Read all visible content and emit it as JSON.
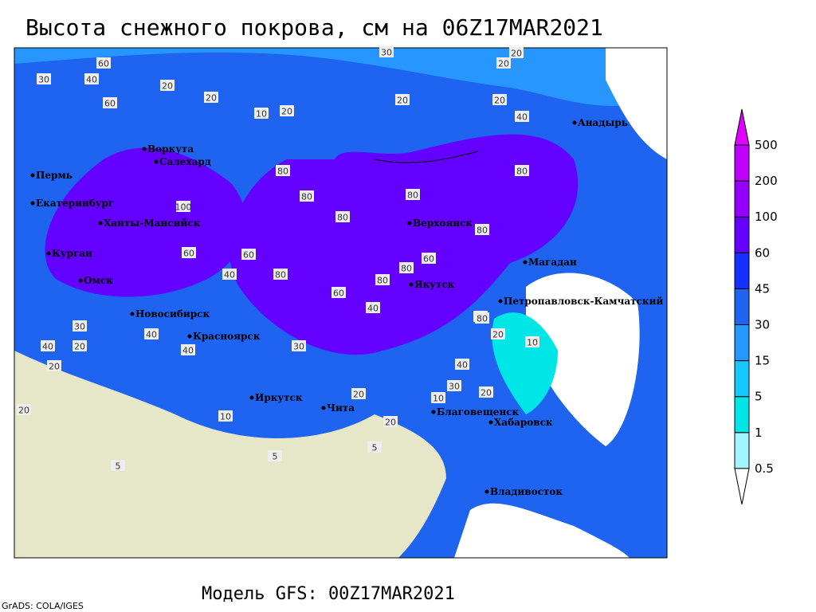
{
  "title": "Высота снежного покрова, см на 06Z17MAR2021",
  "subtitle": "Модель GFS: 00Z17MAR2021",
  "credit": "GrADS: COLA/IGES",
  "legend": {
    "levels": [
      0.5,
      1,
      5,
      15,
      30,
      45,
      60,
      100,
      200,
      500
    ],
    "colors": [
      "#ffffff",
      "#a0f5ff",
      "#00e6e6",
      "#14c8ff",
      "#2896ff",
      "#1e64f0",
      "#1432ff",
      "#6400ff",
      "#9600ff",
      "#c000ff",
      "#e000ff"
    ]
  },
  "cities": [
    "Воркута",
    "Салехард",
    "Пермь",
    "Екатеринбург",
    "Ханты-Мансийск",
    "Курган",
    "Омск",
    "Новосибирск",
    "Красноярск",
    "Иркутск",
    "Чита",
    "Благовещенск",
    "Хабаровск",
    "Владивосток",
    "Якутск",
    "Верхоянск",
    "Магадан",
    "Анадырь",
    "Петропавловск-Камчатский"
  ],
  "contour_labels": [
    60,
    30,
    40,
    20,
    20,
    10,
    20,
    20,
    30,
    20,
    20,
    20,
    40,
    60,
    80,
    100,
    80,
    80,
    80,
    80,
    80,
    60,
    60,
    80,
    60,
    80,
    80,
    40,
    60,
    40,
    30,
    30,
    20,
    20,
    40,
    20,
    10,
    20,
    5,
    5,
    5,
    10,
    20,
    30,
    40,
    60,
    80,
    40,
    40,
    20,
    10,
    20
  ]
}
